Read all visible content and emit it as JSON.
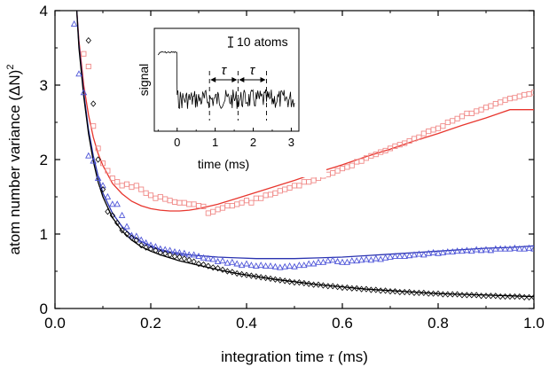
{
  "chart_data": {
    "type": "scatter",
    "xlabel_text": "integration time",
    "xlabel_symbol": "τ",
    "xlabel_unit": "(ms)",
    "ylabel_text": "atom number variance (ΔN)",
    "ylabel_sup": "2",
    "xlim": [
      0.0,
      1.0
    ],
    "ylim": [
      0,
      4
    ],
    "x_ticks": [
      0.0,
      0.2,
      0.4,
      0.6,
      0.8,
      1.0
    ],
    "x_tick_labels": [
      "0.0",
      "0.2",
      "0.4",
      "0.6",
      "0.8",
      "1.0"
    ],
    "y_ticks": [
      0,
      1,
      2,
      3,
      4
    ],
    "y_tick_labels": [
      "0",
      "1",
      "2",
      "3",
      "4"
    ],
    "grid": false,
    "colors": {
      "red": "#e8362e",
      "blue": "#2a33b0",
      "black": "#000000",
      "red_marker": "#f08a88",
      "blue_marker": "#4e55d8"
    },
    "series": [
      {
        "marker": "square",
        "color": "#f08a88",
        "x": [
          0.06,
          0.07,
          0.08,
          0.09,
          0.1,
          0.11,
          0.12,
          0.13,
          0.14,
          0.15,
          0.16,
          0.17,
          0.18,
          0.19,
          0.2,
          0.21,
          0.22,
          0.23,
          0.24,
          0.25,
          0.26,
          0.27,
          0.28,
          0.29,
          0.3,
          0.31,
          0.32,
          0.33,
          0.34,
          0.35,
          0.36,
          0.37,
          0.38,
          0.39,
          0.4,
          0.41,
          0.42,
          0.43,
          0.44,
          0.45,
          0.46,
          0.47,
          0.48,
          0.49,
          0.5,
          0.51,
          0.52,
          0.53,
          0.54,
          0.55,
          0.56,
          0.57,
          0.58,
          0.59,
          0.6,
          0.61,
          0.62,
          0.63,
          0.64,
          0.65,
          0.66,
          0.67,
          0.68,
          0.69,
          0.7,
          0.71,
          0.72,
          0.73,
          0.74,
          0.75,
          0.76,
          0.77,
          0.78,
          0.79,
          0.8,
          0.81,
          0.82,
          0.83,
          0.84,
          0.85,
          0.86,
          0.87,
          0.88,
          0.89,
          0.9,
          0.91,
          0.92,
          0.93,
          0.94,
          0.95,
          0.96,
          0.97,
          0.98,
          0.99,
          1.0
        ],
        "y": [
          3.42,
          3.25,
          2.45,
          2.15,
          1.95,
          1.85,
          1.75,
          1.7,
          1.65,
          1.67,
          1.63,
          1.65,
          1.6,
          1.55,
          1.52,
          1.48,
          1.5,
          1.47,
          1.45,
          1.43,
          1.42,
          1.42,
          1.4,
          1.4,
          1.38,
          1.37,
          1.28,
          1.3,
          1.33,
          1.35,
          1.38,
          1.38,
          1.4,
          1.42,
          1.45,
          1.42,
          1.48,
          1.48,
          1.52,
          1.53,
          1.55,
          1.58,
          1.6,
          1.62,
          1.65,
          1.65,
          1.7,
          1.7,
          1.72,
          1.75,
          1.78,
          1.8,
          1.82,
          1.85,
          1.88,
          1.9,
          1.92,
          1.97,
          1.98,
          2.02,
          2.05,
          2.07,
          2.1,
          2.12,
          2.15,
          2.18,
          2.2,
          2.22,
          2.25,
          2.28,
          2.3,
          2.35,
          2.38,
          2.4,
          2.42,
          2.45,
          2.5,
          2.52,
          2.55,
          2.58,
          2.62,
          2.62,
          2.65,
          2.67,
          2.7,
          2.72,
          2.75,
          2.77,
          2.8,
          2.82,
          2.83,
          2.85,
          2.87,
          2.88,
          2.9
        ]
      },
      {
        "marker": "triangle",
        "color": "#4e55d8",
        "x": [
          0.04,
          0.05,
          0.06,
          0.07,
          0.08,
          0.09,
          0.1,
          0.11,
          0.12,
          0.13,
          0.14,
          0.15,
          0.16,
          0.17,
          0.18,
          0.19,
          0.2,
          0.21,
          0.22,
          0.23,
          0.24,
          0.25,
          0.26,
          0.27,
          0.28,
          0.29,
          0.3,
          0.31,
          0.32,
          0.33,
          0.34,
          0.35,
          0.36,
          0.37,
          0.38,
          0.39,
          0.4,
          0.41,
          0.42,
          0.43,
          0.44,
          0.45,
          0.46,
          0.47,
          0.48,
          0.49,
          0.5,
          0.51,
          0.52,
          0.53,
          0.54,
          0.55,
          0.56,
          0.57,
          0.58,
          0.59,
          0.6,
          0.61,
          0.62,
          0.63,
          0.64,
          0.65,
          0.66,
          0.67,
          0.68,
          0.69,
          0.7,
          0.71,
          0.72,
          0.73,
          0.74,
          0.75,
          0.76,
          0.77,
          0.78,
          0.79,
          0.8,
          0.81,
          0.82,
          0.83,
          0.84,
          0.85,
          0.86,
          0.87,
          0.88,
          0.89,
          0.9,
          0.91,
          0.92,
          0.93,
          0.94,
          0.95,
          0.96,
          0.97,
          0.98,
          0.99,
          1.0
        ],
        "y": [
          3.82,
          3.15,
          2.9,
          2.05,
          1.98,
          1.75,
          1.65,
          1.5,
          1.4,
          1.4,
          1.25,
          1.1,
          0.98,
          0.97,
          0.92,
          0.88,
          0.85,
          0.83,
          0.8,
          0.79,
          0.78,
          0.76,
          0.75,
          0.74,
          0.72,
          0.72,
          0.7,
          0.68,
          0.67,
          0.66,
          0.63,
          0.64,
          0.61,
          0.62,
          0.6,
          0.58,
          0.6,
          0.58,
          0.57,
          0.58,
          0.57,
          0.57,
          0.56,
          0.55,
          0.56,
          0.57,
          0.56,
          0.58,
          0.58,
          0.6,
          0.6,
          0.62,
          0.62,
          0.64,
          0.65,
          0.63,
          0.62,
          0.62,
          0.64,
          0.64,
          0.65,
          0.66,
          0.65,
          0.67,
          0.66,
          0.68,
          0.69,
          0.7,
          0.7,
          0.7,
          0.71,
          0.72,
          0.73,
          0.72,
          0.74,
          0.75,
          0.74,
          0.75,
          0.76,
          0.76,
          0.77,
          0.77,
          0.78,
          0.77,
          0.79,
          0.78,
          0.79,
          0.78,
          0.8,
          0.8,
          0.8,
          0.8,
          0.81,
          0.8,
          0.8,
          0.81,
          0.8
        ]
      },
      {
        "marker": "diamond",
        "color": "#000000",
        "x": [
          0.07,
          0.08,
          0.09,
          0.1,
          0.11,
          0.12,
          0.13,
          0.14,
          0.15,
          0.16,
          0.17,
          0.18,
          0.19,
          0.2,
          0.21,
          0.22,
          0.23,
          0.24,
          0.25,
          0.26,
          0.27,
          0.28,
          0.29,
          0.3,
          0.31,
          0.32,
          0.33,
          0.34,
          0.35,
          0.36,
          0.37,
          0.38,
          0.39,
          0.4,
          0.41,
          0.42,
          0.43,
          0.44,
          0.45,
          0.46,
          0.47,
          0.48,
          0.49,
          0.5,
          0.51,
          0.52,
          0.53,
          0.54,
          0.55,
          0.56,
          0.57,
          0.58,
          0.59,
          0.6,
          0.61,
          0.62,
          0.63,
          0.64,
          0.65,
          0.66,
          0.67,
          0.68,
          0.69,
          0.7,
          0.71,
          0.72,
          0.73,
          0.74,
          0.75,
          0.76,
          0.77,
          0.78,
          0.79,
          0.8,
          0.81,
          0.82,
          0.83,
          0.84,
          0.85,
          0.86,
          0.87,
          0.88,
          0.89,
          0.9,
          0.91,
          0.92,
          0.93,
          0.94,
          0.95,
          0.96,
          0.97,
          0.98,
          0.99,
          1.0
        ],
        "y": [
          3.6,
          2.75,
          2.0,
          1.6,
          1.3,
          1.25,
          1.15,
          1.05,
          1.0,
          0.95,
          0.92,
          0.85,
          0.82,
          0.8,
          0.78,
          0.75,
          0.74,
          0.72,
          0.7,
          0.69,
          0.67,
          0.65,
          0.63,
          0.6,
          0.59,
          0.57,
          0.55,
          0.54,
          0.52,
          0.5,
          0.49,
          0.47,
          0.46,
          0.45,
          0.44,
          0.43,
          0.42,
          0.41,
          0.4,
          0.39,
          0.38,
          0.37,
          0.36,
          0.35,
          0.35,
          0.34,
          0.33,
          0.32,
          0.32,
          0.31,
          0.3,
          0.3,
          0.29,
          0.28,
          0.28,
          0.27,
          0.27,
          0.26,
          0.26,
          0.25,
          0.25,
          0.24,
          0.24,
          0.23,
          0.23,
          0.22,
          0.22,
          0.22,
          0.21,
          0.21,
          0.21,
          0.2,
          0.2,
          0.2,
          0.19,
          0.19,
          0.19,
          0.19,
          0.18,
          0.18,
          0.18,
          0.18,
          0.17,
          0.17,
          0.17,
          0.17,
          0.16,
          0.16,
          0.16,
          0.16,
          0.16,
          0.15,
          0.15,
          0.15
        ]
      }
    ],
    "fits": [
      {
        "color": "#e8362e",
        "x": [
          0.045,
          0.05,
          0.06,
          0.07,
          0.08,
          0.09,
          0.1,
          0.12,
          0.14,
          0.16,
          0.18,
          0.2,
          0.22,
          0.24,
          0.26,
          0.28,
          0.3,
          0.34,
          0.38,
          0.42,
          0.46,
          0.5,
          0.55,
          0.6,
          0.65,
          0.7,
          0.75,
          0.8,
          0.85,
          0.9,
          0.95,
          1.0
        ],
        "y": [
          4.05,
          3.6,
          3.0,
          2.6,
          2.3,
          2.08,
          1.92,
          1.68,
          1.54,
          1.44,
          1.38,
          1.34,
          1.32,
          1.31,
          1.31,
          1.32,
          1.34,
          1.4,
          1.48,
          1.56,
          1.64,
          1.72,
          1.83,
          1.93,
          2.04,
          2.14,
          2.25,
          2.35,
          2.46,
          2.56,
          2.67,
          2.67
        ]
      },
      {
        "color": "#2a33b0",
        "x": [
          0.045,
          0.05,
          0.06,
          0.07,
          0.08,
          0.09,
          0.1,
          0.12,
          0.14,
          0.16,
          0.18,
          0.2,
          0.22,
          0.24,
          0.26,
          0.28,
          0.3,
          0.34,
          0.38,
          0.42,
          0.46,
          0.5,
          0.55,
          0.6,
          0.65,
          0.7,
          0.75,
          0.8,
          0.85,
          0.9,
          0.95,
          1.0
        ],
        "y": [
          4.05,
          3.55,
          2.9,
          2.4,
          2.05,
          1.78,
          1.55,
          1.28,
          1.1,
          0.98,
          0.9,
          0.84,
          0.79,
          0.76,
          0.74,
          0.72,
          0.71,
          0.69,
          0.68,
          0.67,
          0.67,
          0.67,
          0.68,
          0.69,
          0.71,
          0.73,
          0.75,
          0.77,
          0.79,
          0.81,
          0.82,
          0.84
        ]
      },
      {
        "color": "#000000",
        "x": [
          0.045,
          0.05,
          0.06,
          0.07,
          0.08,
          0.09,
          0.1,
          0.12,
          0.14,
          0.16,
          0.18,
          0.2,
          0.22,
          0.24,
          0.26,
          0.28,
          0.3,
          0.34,
          0.38,
          0.42,
          0.46,
          0.5,
          0.55,
          0.6,
          0.65,
          0.7,
          0.75,
          0.8,
          0.85,
          0.9,
          0.95,
          1.0
        ],
        "y": [
          4.05,
          3.5,
          2.85,
          2.35,
          1.98,
          1.7,
          1.5,
          1.22,
          1.04,
          0.92,
          0.83,
          0.77,
          0.72,
          0.68,
          0.64,
          0.61,
          0.58,
          0.52,
          0.47,
          0.43,
          0.39,
          0.36,
          0.32,
          0.29,
          0.26,
          0.24,
          0.22,
          0.2,
          0.19,
          0.18,
          0.17,
          0.16
        ]
      }
    ],
    "inset": {
      "xlabel": "time (ms)",
      "ylabel": "signal",
      "xlim": [
        -0.6,
        3.2
      ],
      "x_ticks": [
        0,
        1,
        2,
        3
      ],
      "x_tick_labels": [
        "0",
        "1",
        "2",
        "3"
      ],
      "scale_bar_label": "10 atoms",
      "tau_symbol": "τ",
      "tau_markers": [
        0.85,
        1.6,
        2.35
      ]
    }
  }
}
